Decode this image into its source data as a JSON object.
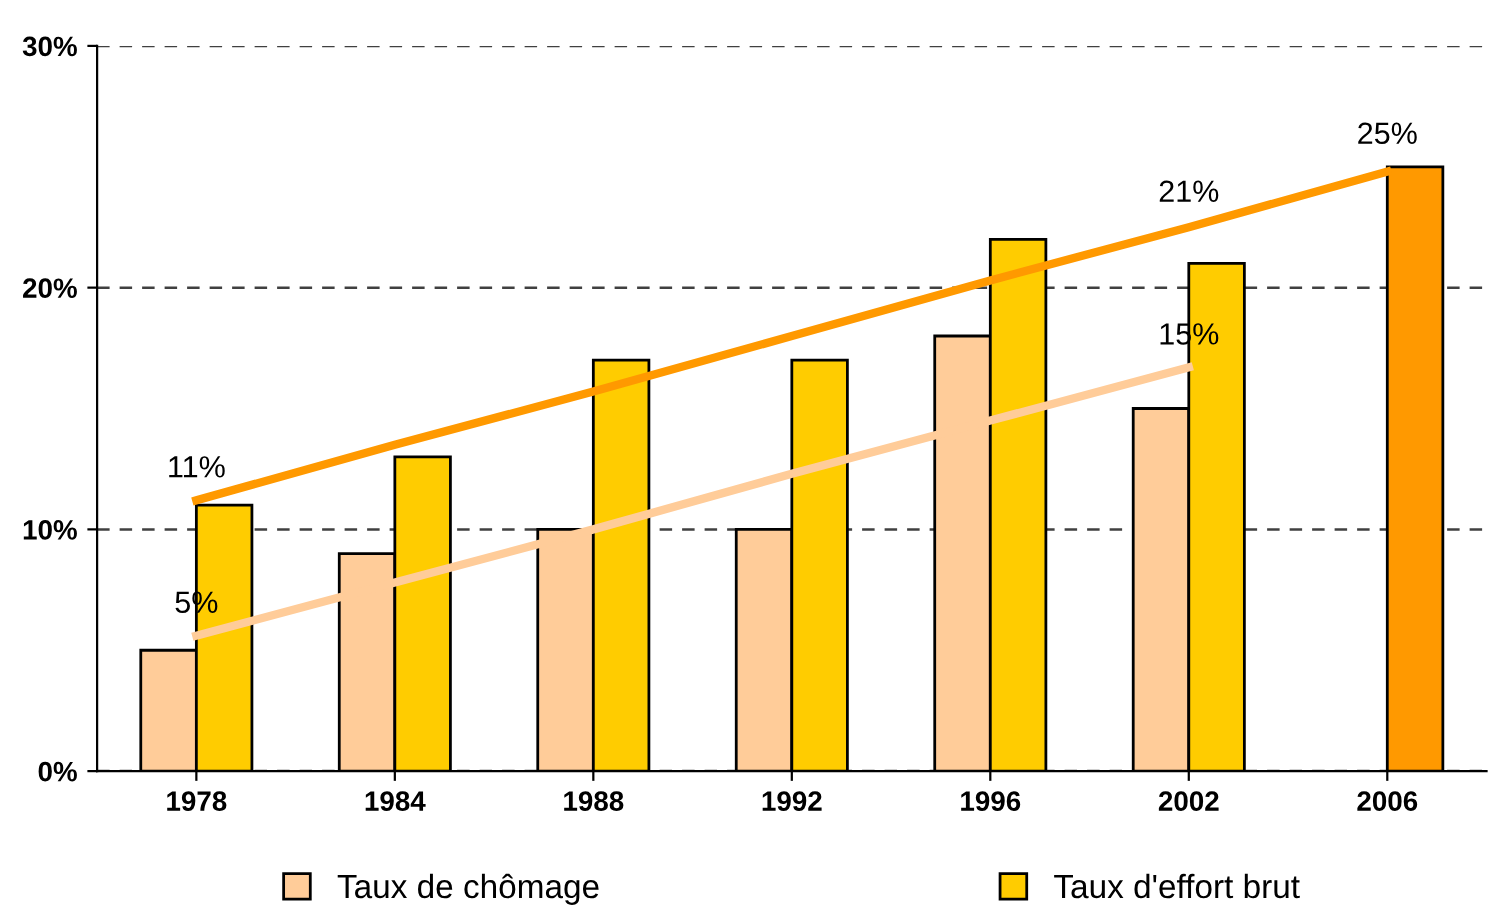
{
  "chart_data": {
    "type": "bar",
    "categories": [
      "1978",
      "1984",
      "1988",
      "1992",
      "1996",
      "2002",
      "2006"
    ],
    "series": [
      {
        "name": "Taux de chômage",
        "color": "#ffcc99",
        "values": [
          5,
          9,
          10,
          10,
          18,
          15,
          null
        ]
      },
      {
        "name": "Taux d'effort brut",
        "color": "#ffcc00",
        "colors": [
          "#ffcc00",
          "#ffcc00",
          "#ffcc00",
          "#ffcc00",
          "#ffcc00",
          "#ffcc00",
          "#ff9900"
        ],
        "values": [
          11,
          13,
          17,
          17,
          22,
          21,
          25
        ]
      },
      {
        "type": "line",
        "color": "#ff9900",
        "values": [
          11.2,
          13.5,
          15.7,
          18.0,
          20.3,
          22.5,
          24.8
        ]
      },
      {
        "type": "line",
        "color": "#ffcc99",
        "values": [
          5.6,
          7.8,
          10.0,
          12.3,
          14.5,
          16.7,
          null
        ]
      }
    ],
    "annotations": [
      {
        "text": "5%",
        "x": "1978",
        "y": 5.6
      },
      {
        "text": "11%",
        "x": "1978",
        "y": 11.2
      },
      {
        "text": "15%",
        "x": "2002",
        "y": 16.7
      },
      {
        "text": "21%",
        "x": "2002",
        "y": 22.6
      },
      {
        "text": "25%",
        "x": "2006",
        "y": 25
      }
    ],
    "ylim": [
      0,
      30
    ],
    "yticks": [
      {
        "value": 0,
        "label": "0%"
      },
      {
        "value": 10,
        "label": "10%"
      },
      {
        "value": 20,
        "label": "20%"
      },
      {
        "value": 30,
        "label": "30%"
      }
    ],
    "grid": "y",
    "legend": "bottom",
    "line_style": "solid"
  }
}
